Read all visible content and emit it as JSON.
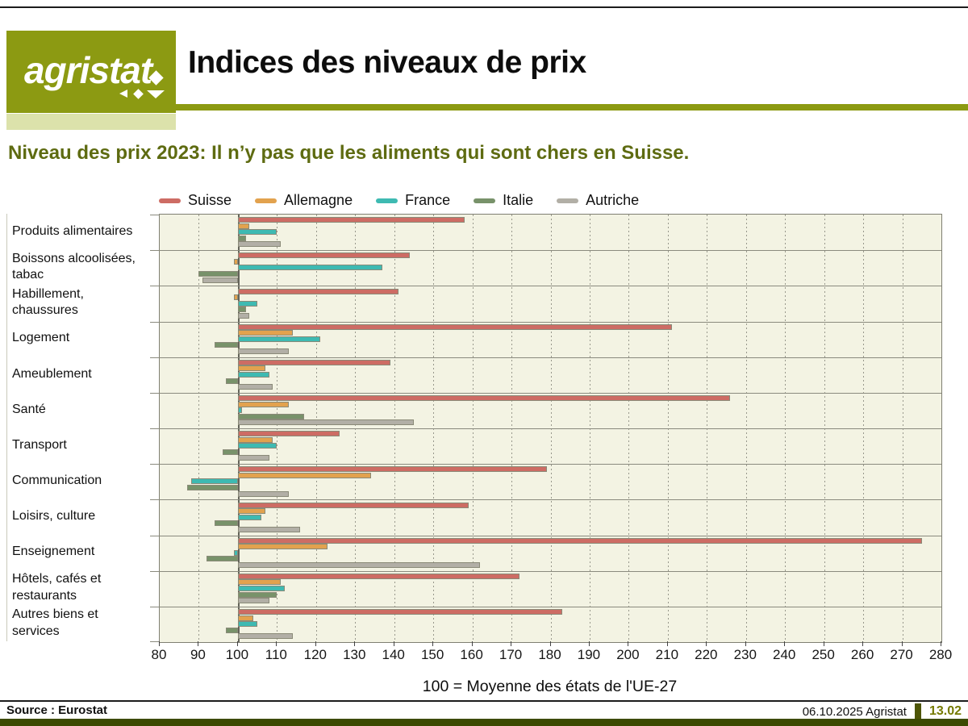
{
  "header": {
    "logo_text": "agristat",
    "title": "Indices des niveaux de prix",
    "accent_color": "#8c9a12",
    "accent_light": "#dce2ab"
  },
  "subtitle": "Niveau des prix 2023: Il n’y pas que les aliments qui sont chers en Suisse.",
  "chart_data": {
    "type": "bar",
    "orientation": "horizontal",
    "caption": "100 = Moyenne des états de l'UE-27",
    "axis": {
      "min": 80,
      "max": 280,
      "step": 10,
      "baseline": 100
    },
    "grid": "vertical-dashed",
    "legend_position": "top",
    "plot_bg": "#f3f3e3",
    "categories": [
      "Produits alimentaires",
      "Boissons alcoolisées,\n tabac",
      "Habillement,\n chaussures",
      "Logement",
      "Ameublement",
      "Santé",
      "Transport",
      "Communication",
      "Loisirs, culture",
      "Enseignement",
      "Hôtels, cafés et\n restaurants",
      "Autres biens et\n services"
    ],
    "series": [
      {
        "name": "Suisse",
        "color": "#cd6c64",
        "values": [
          158,
          144,
          141,
          211,
          139,
          226,
          126,
          179,
          159,
          275,
          172,
          183
        ]
      },
      {
        "name": "Allemagne",
        "color": "#e2a24e",
        "values": [
          103,
          99,
          99,
          114,
          107,
          113,
          109,
          134,
          107,
          123,
          111,
          104
        ]
      },
      {
        "name": "France",
        "color": "#3ebab2",
        "values": [
          110,
          137,
          105,
          121,
          108,
          101,
          110,
          88,
          106,
          99,
          112,
          105
        ]
      },
      {
        "name": "Italie",
        "color": "#78926a",
        "values": [
          102,
          90,
          102,
          94,
          97,
          117,
          96,
          87,
          94,
          92,
          110,
          97
        ]
      },
      {
        "name": "Autriche",
        "color": "#b2afa6",
        "values": [
          111,
          91,
          103,
          113,
          109,
          145,
          108,
          113,
          116,
          162,
          108,
          114
        ]
      }
    ]
  },
  "footer": {
    "source": "Source : Eurostat",
    "date_label": "06.10.2025 Agristat",
    "page_number": "13.02"
  }
}
